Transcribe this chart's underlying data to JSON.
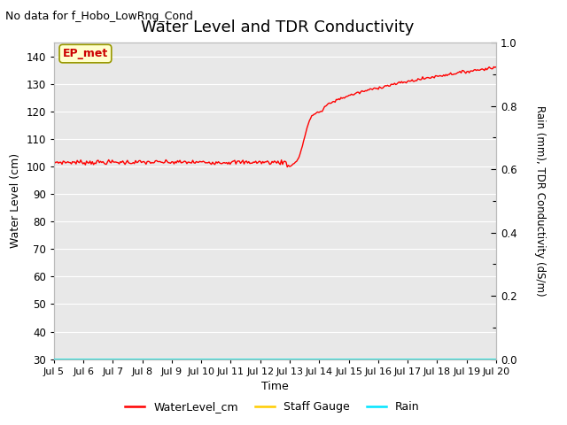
{
  "title": "Water Level and TDR Conductivity",
  "subtitle": "No data for f_Hobo_LowRng_Cond",
  "xlabel": "Time",
  "ylabel_left": "Water Level (cm)",
  "ylabel_right": "Rain (mm), TDR Conductivity (dS/m)",
  "ylim_left": [
    30,
    145
  ],
  "ylim_right": [
    0.0,
    1.0
  ],
  "yticks_left": [
    30,
    40,
    50,
    60,
    70,
    80,
    90,
    100,
    110,
    120,
    130,
    140
  ],
  "yticks_right_labeled": [
    0.0,
    0.2,
    0.4,
    0.6,
    0.8,
    1.0
  ],
  "yticks_right_minor": [
    0.1,
    0.3,
    0.5,
    0.7,
    0.9
  ],
  "xtick_labels": [
    "Jul 5",
    "Jul 6",
    "Jul 7",
    "Jul 8",
    "Jul 9",
    "Jul 10",
    "Jul 11",
    "Jul 12",
    "Jul 13",
    "Jul 14",
    "Jul 15",
    "Jul 16",
    "Jul 17",
    "Jul 18",
    "Jul 19",
    "Jul 20"
  ],
  "annotation_box": "EP_met",
  "plot_bg_color": "#e8e8e8",
  "grid_color": "#ffffff",
  "water_level_color": "#ff0000",
  "staff_gauge_color": "#ffcc00",
  "rain_color": "#00e5ff",
  "legend_items": [
    "WaterLevel_cm",
    "Staff Gauge",
    "Rain"
  ],
  "title_fontsize": 13,
  "subtitle_fontsize": 9,
  "axis_label_fontsize": 9,
  "tick_fontsize": 8.5
}
